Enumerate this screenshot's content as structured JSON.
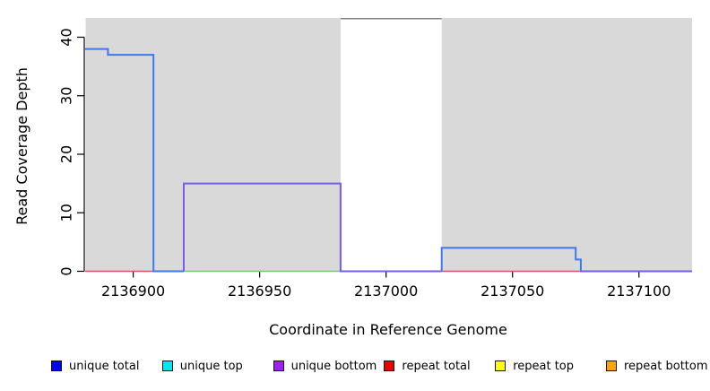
{
  "chart_data": {
    "type": "line",
    "subtype": "step-coverage",
    "title": "",
    "xlabel": "Coordinate in Reference Genome",
    "ylabel": "Read Coverage Depth",
    "xlim": [
      2136881,
      2137121
    ],
    "ylim": [
      0,
      43.3
    ],
    "xticks": [
      2136900,
      2136950,
      2137000,
      2137050,
      2137100
    ],
    "yticks": [
      0,
      10,
      20,
      30,
      40
    ],
    "grid": false,
    "background": {
      "plot_color": "#d9d9d9",
      "highlight_band": {
        "x0": 2136982,
        "x1": 2137022,
        "color": "#ffffff",
        "top_border_color": "#7f7f7f"
      }
    },
    "series": [
      {
        "name": "repeat-total-left-baseline",
        "color": "#e0506a",
        "width": 1.4,
        "points": [
          [
            2136881,
            0
          ],
          [
            2136908,
            0
          ]
        ]
      },
      {
        "name": "repeat-total-right-baseline",
        "color": "#e0506a",
        "width": 1.4,
        "points": [
          [
            2137022,
            0
          ],
          [
            2137077,
            0
          ]
        ]
      },
      {
        "name": "green-baseline",
        "color": "#7dc87d",
        "width": 1.4,
        "points": [
          [
            2136908,
            0
          ],
          [
            2136982,
            0
          ]
        ]
      },
      {
        "name": "unique-total-left-steps",
        "color": "#3c78f0",
        "width": 2,
        "points": [
          [
            2136881,
            38
          ],
          [
            2136890,
            38
          ],
          [
            2136890,
            37
          ],
          [
            2136908,
            37
          ],
          [
            2136908,
            0
          ],
          [
            2136920,
            0
          ]
        ]
      },
      {
        "name": "unique-total-right-steps",
        "color": "#3c78f0",
        "width": 2,
        "points": [
          [
            2137022,
            0
          ],
          [
            2137022,
            4
          ],
          [
            2137075,
            4
          ],
          [
            2137075,
            2
          ],
          [
            2137077,
            2
          ],
          [
            2137077,
            0
          ],
          [
            2137121,
            0
          ]
        ]
      },
      {
        "name": "unique-bottom-box",
        "color": "#7a5ae8",
        "width": 2,
        "points": [
          [
            2136920,
            0
          ],
          [
            2136920,
            15
          ],
          [
            2136982,
            15
          ],
          [
            2136982,
            0
          ],
          [
            2137022,
            0
          ]
        ]
      },
      {
        "name": "unique-bottom-right-baseline",
        "color": "#7a5ae8",
        "width": 2,
        "points": [
          [
            2137077,
            0
          ],
          [
            2137121,
            0
          ]
        ]
      }
    ],
    "legend": {
      "position": "bottom",
      "entries": [
        {
          "label": "unique total",
          "color": "#0000f0"
        },
        {
          "label": "unique top",
          "color": "#00e8ee"
        },
        {
          "label": "unique bottom",
          "color": "#a020f0"
        },
        {
          "label": "repeat total",
          "color": "#ee0000"
        },
        {
          "label": "repeat top",
          "color": "#ffff00"
        },
        {
          "label": "repeat bottom",
          "color": "#ffa500"
        }
      ]
    }
  }
}
